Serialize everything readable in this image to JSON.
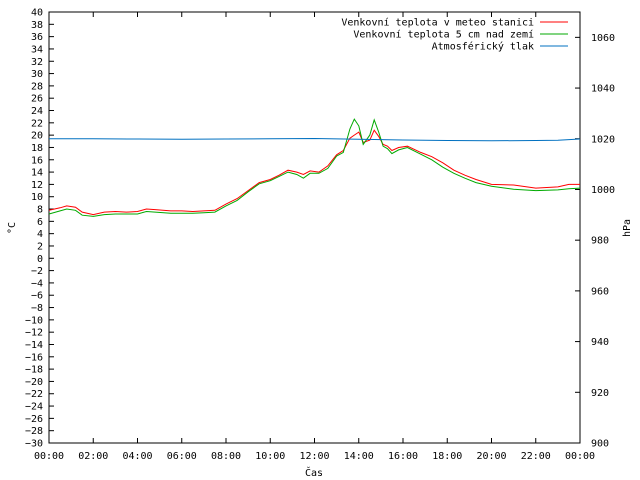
{
  "chart_data": {
    "type": "line",
    "title": "",
    "xlabel": "Čas",
    "ylabel": "°C",
    "y2label": "hPa",
    "xlim": [
      0,
      24
    ],
    "ylim": [
      -30,
      40
    ],
    "y2lim": [
      900,
      1070
    ],
    "x_ticks": [
      "00:00",
      "02:00",
      "04:00",
      "06:00",
      "08:00",
      "10:00",
      "12:00",
      "14:00",
      "16:00",
      "18:00",
      "20:00",
      "22:00",
      "00:00"
    ],
    "y_ticks": [
      40,
      38,
      36,
      34,
      32,
      30,
      28,
      26,
      24,
      22,
      20,
      18,
      16,
      14,
      12,
      10,
      8,
      6,
      4,
      2,
      0,
      -2,
      -4,
      -6,
      -8,
      -10,
      -12,
      -14,
      -16,
      -18,
      -20,
      -22,
      -24,
      -26,
      -28,
      -30
    ],
    "y_tick_labels": [
      "40",
      "38",
      "36",
      "34",
      "32",
      "30",
      "28",
      "26",
      "24",
      "22",
      "20",
      "18",
      "16",
      "14",
      "12",
      "10",
      "8",
      "6",
      "4",
      "2",
      "0",
      "−2",
      "−4",
      "−6",
      "−8",
      "−10",
      "−12",
      "−14",
      "−16",
      "−18",
      "−20",
      "−22",
      "−24",
      "−26",
      "−28",
      "−30"
    ],
    "y2_ticks": [
      1060,
      1040,
      1020,
      1000,
      980,
      960,
      940,
      920,
      900
    ],
    "grid": false,
    "legend_position": "top-right",
    "series": [
      {
        "name": "Venkovní teplota v meteo stanici",
        "color": "#ff0000",
        "axis": "y",
        "x": [
          0,
          0.5,
          0.8,
          1.2,
          1.5,
          2.0,
          2.5,
          3.0,
          3.5,
          4.0,
          4.4,
          4.8,
          5.5,
          6.0,
          6.5,
          7.0,
          7.5,
          8.0,
          8.5,
          9.0,
          9.5,
          10.0,
          10.4,
          10.8,
          11.2,
          11.5,
          11.8,
          12.2,
          12.6,
          13.0,
          13.3,
          13.6,
          13.8,
          14.0,
          14.2,
          14.5,
          14.7,
          14.9,
          15.1,
          15.3,
          15.5,
          15.8,
          16.2,
          16.8,
          17.3,
          17.8,
          18.3,
          18.8,
          19.3,
          20.0,
          21.0,
          22.0,
          23.0,
          23.5,
          24.0
        ],
        "values": [
          7.8,
          8.2,
          8.5,
          8.3,
          7.5,
          7.1,
          7.5,
          7.6,
          7.5,
          7.6,
          8.0,
          7.9,
          7.7,
          7.7,
          7.6,
          7.7,
          7.8,
          8.8,
          9.7,
          11.0,
          12.3,
          12.8,
          13.5,
          14.3,
          14.0,
          13.6,
          14.2,
          14.0,
          15.0,
          16.8,
          17.5,
          19.5,
          20.0,
          20.5,
          18.8,
          19.2,
          20.8,
          19.8,
          18.5,
          18.2,
          17.5,
          18.0,
          18.2,
          17.2,
          16.5,
          15.5,
          14.3,
          13.5,
          12.8,
          12.0,
          11.9,
          11.4,
          11.6,
          12.0,
          12.0
        ]
      },
      {
        "name": "Venkovní teplota 5 cm nad zemí",
        "color": "#00aa00",
        "axis": "y",
        "x": [
          0,
          0.5,
          0.8,
          1.2,
          1.5,
          2.0,
          2.5,
          3.0,
          3.5,
          4.0,
          4.4,
          4.8,
          5.5,
          6.0,
          6.5,
          7.0,
          7.5,
          8.0,
          8.5,
          9.0,
          9.5,
          10.0,
          10.4,
          10.8,
          11.2,
          11.5,
          11.8,
          12.2,
          12.6,
          13.0,
          13.3,
          13.6,
          13.8,
          14.0,
          14.2,
          14.5,
          14.7,
          14.9,
          15.1,
          15.3,
          15.5,
          15.8,
          16.2,
          16.8,
          17.3,
          17.8,
          18.3,
          18.8,
          19.3,
          20.0,
          21.0,
          22.0,
          23.0,
          23.5,
          24.0
        ],
        "values": [
          7.2,
          7.7,
          8.0,
          7.8,
          7.0,
          6.8,
          7.1,
          7.2,
          7.2,
          7.2,
          7.6,
          7.5,
          7.3,
          7.3,
          7.3,
          7.4,
          7.5,
          8.5,
          9.4,
          10.8,
          12.1,
          12.6,
          13.3,
          14.0,
          13.6,
          13.0,
          13.8,
          13.8,
          14.6,
          16.6,
          17.2,
          21.0,
          22.6,
          21.5,
          18.5,
          20.0,
          22.5,
          20.5,
          18.2,
          17.8,
          17.0,
          17.6,
          18.0,
          16.9,
          16.0,
          14.8,
          13.8,
          13.0,
          12.3,
          11.7,
          11.2,
          11.0,
          11.1,
          11.3,
          11.4
        ]
      },
      {
        "name": "Atmosférický tlak",
        "color": "#0070c0",
        "axis": "y2",
        "x": [
          0,
          2,
          4,
          6,
          8,
          10,
          12,
          14,
          16,
          18,
          20,
          22,
          23,
          24
        ],
        "values": [
          1020.0,
          1020.0,
          1019.9,
          1019.8,
          1019.9,
          1020.0,
          1020.1,
          1019.8,
          1019.5,
          1019.3,
          1019.2,
          1019.3,
          1019.4,
          1019.9
        ]
      }
    ]
  }
}
